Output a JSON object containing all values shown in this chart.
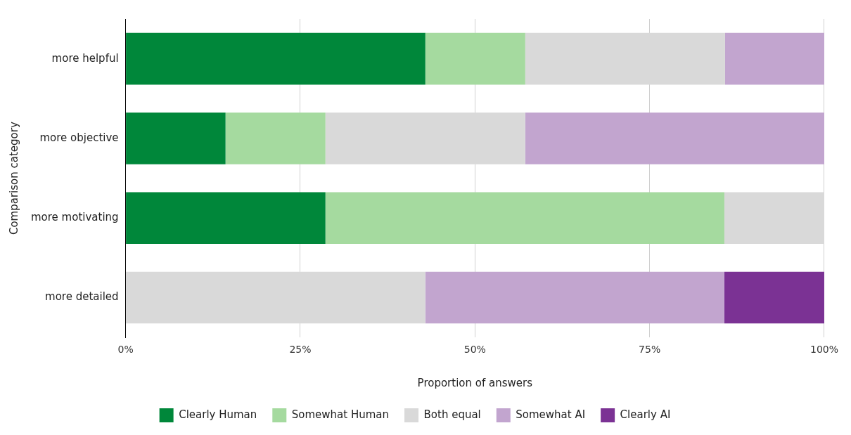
{
  "chart_data": {
    "type": "bar",
    "orientation": "horizontal",
    "stacked": true,
    "xlabel": "Proportion of answers",
    "ylabel": "Comparison category",
    "categories": [
      "more helpful",
      "more objective",
      "more motivating",
      "more detailed"
    ],
    "series": [
      {
        "name": "Clearly Human",
        "color": "#00873a",
        "values": [
          42.9,
          14.3,
          28.6,
          0
        ]
      },
      {
        "name": "Somewhat Human",
        "color": "#a5da9f",
        "values": [
          14.3,
          14.3,
          57.1,
          0
        ]
      },
      {
        "name": "Both equal",
        "color": "#d9d9d9",
        "values": [
          28.6,
          28.6,
          14.3,
          42.9
        ]
      },
      {
        "name": "Somewhat AI",
        "color": "#c2a5cf",
        "values": [
          14.2,
          42.8,
          0,
          42.8
        ]
      },
      {
        "name": "Clearly AI",
        "color": "#7b3294",
        "values": [
          0,
          0,
          0,
          14.3
        ]
      }
    ],
    "xlim": [
      0,
      100
    ],
    "xticks": [
      {
        "value": 0,
        "label": "0%"
      },
      {
        "value": 25,
        "label": "25%"
      },
      {
        "value": 50,
        "label": "50%"
      },
      {
        "value": 75,
        "label": "75%"
      },
      {
        "value": 100,
        "label": "100%"
      }
    ],
    "grid": "x",
    "legend": "bottom"
  }
}
